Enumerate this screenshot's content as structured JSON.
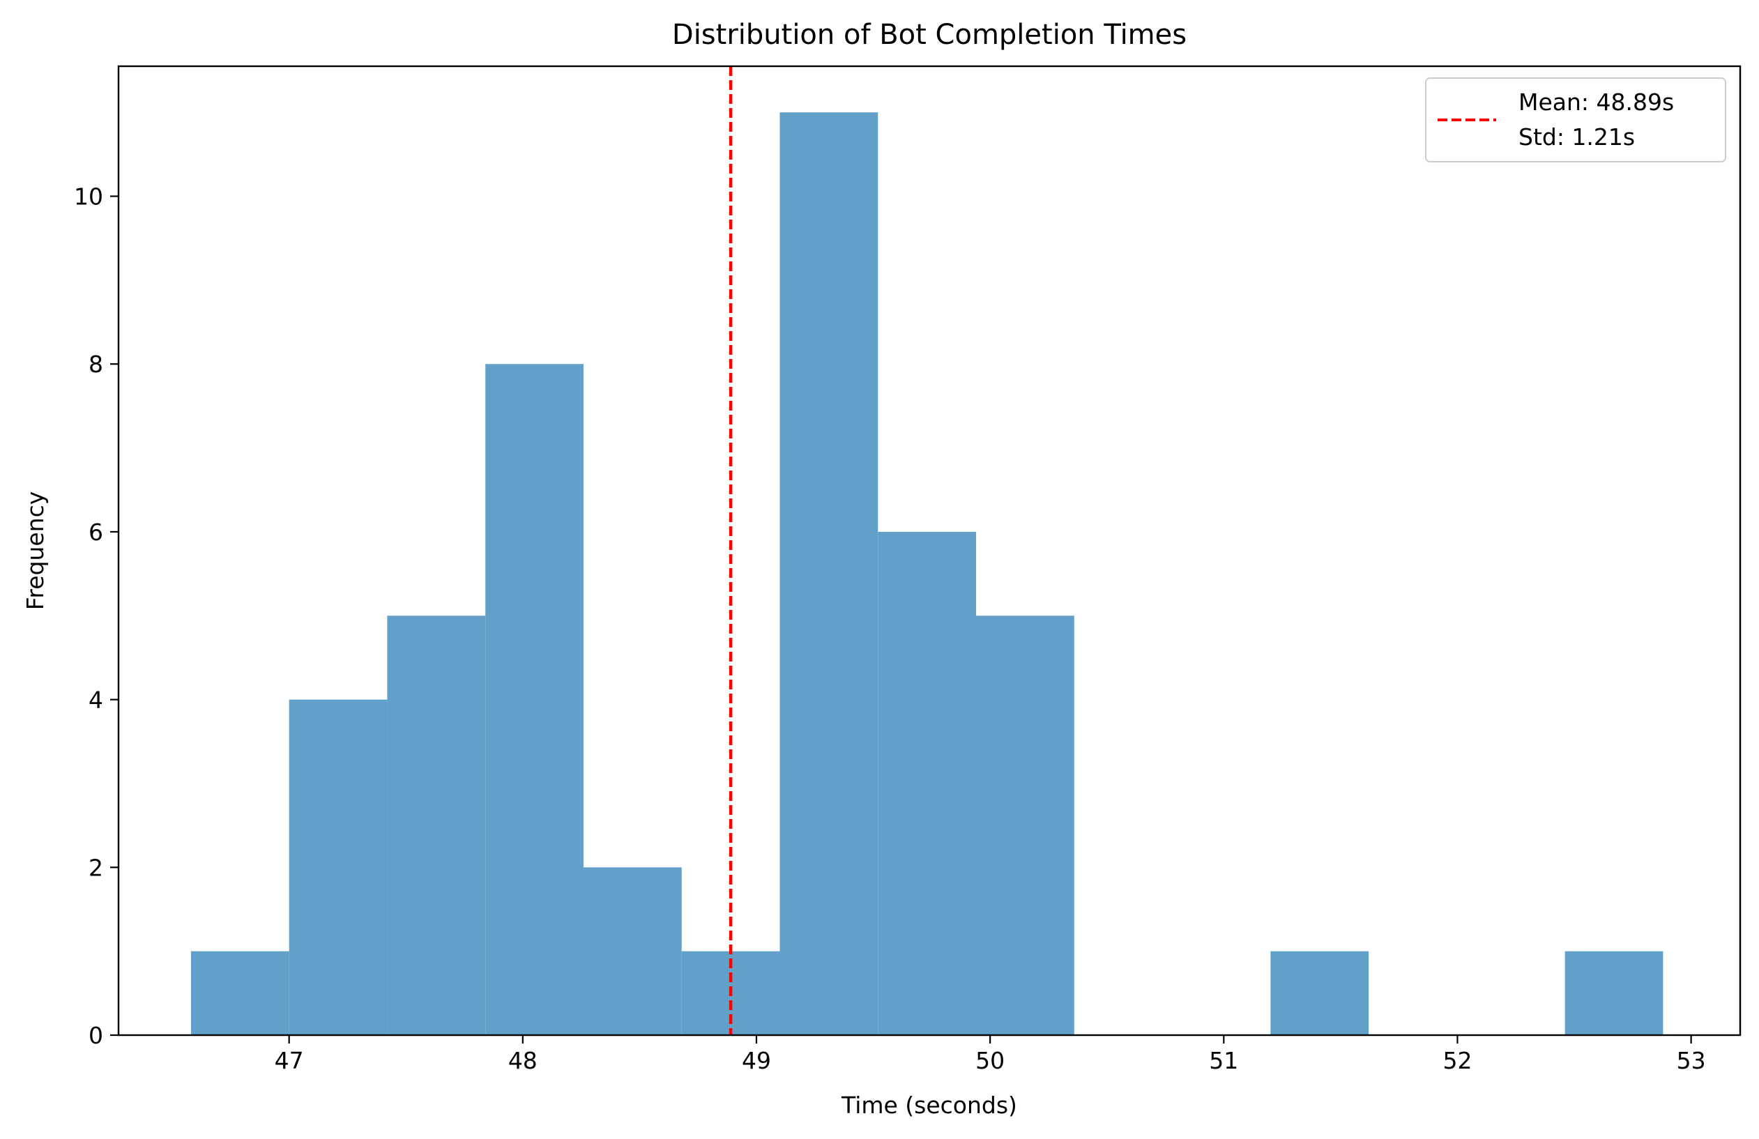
{
  "chart_data": {
    "type": "bar",
    "title": "Distribution of Bot Completion Times",
    "xlabel": "Time (seconds)",
    "ylabel": "Frequency",
    "xlim": [
      46.27,
      53.21
    ],
    "ylim": [
      0,
      11.55
    ],
    "grid": false,
    "bar_color": "#62a0ca",
    "bins": [
      {
        "x0": 46.58,
        "x1": 47.0,
        "count": 1
      },
      {
        "x0": 47.0,
        "x1": 47.42,
        "count": 4
      },
      {
        "x0": 47.42,
        "x1": 47.84,
        "count": 5
      },
      {
        "x0": 47.84,
        "x1": 48.26,
        "count": 8
      },
      {
        "x0": 48.26,
        "x1": 48.68,
        "count": 2
      },
      {
        "x0": 48.68,
        "x1": 49.1,
        "count": 1
      },
      {
        "x0": 49.1,
        "x1": 49.52,
        "count": 11
      },
      {
        "x0": 49.52,
        "x1": 49.94,
        "count": 6
      },
      {
        "x0": 49.94,
        "x1": 50.36,
        "count": 5
      },
      {
        "x0": 50.36,
        "x1": 50.78,
        "count": 0
      },
      {
        "x0": 50.78,
        "x1": 51.2,
        "count": 0
      },
      {
        "x0": 51.2,
        "x1": 51.62,
        "count": 1
      },
      {
        "x0": 51.62,
        "x1": 52.04,
        "count": 0
      },
      {
        "x0": 52.04,
        "x1": 52.46,
        "count": 0
      },
      {
        "x0": 52.46,
        "x1": 52.88,
        "count": 1
      }
    ],
    "x_ticks": [
      47,
      48,
      49,
      50,
      51,
      52,
      53
    ],
    "y_ticks": [
      0,
      2,
      4,
      6,
      8,
      10
    ],
    "mean_line": {
      "value": 48.89,
      "color": "#ff0000",
      "style": "dashed"
    },
    "legend": {
      "position": "top-right",
      "lines": [
        "Mean: 48.89s",
        "Std: 1.21s"
      ]
    }
  }
}
